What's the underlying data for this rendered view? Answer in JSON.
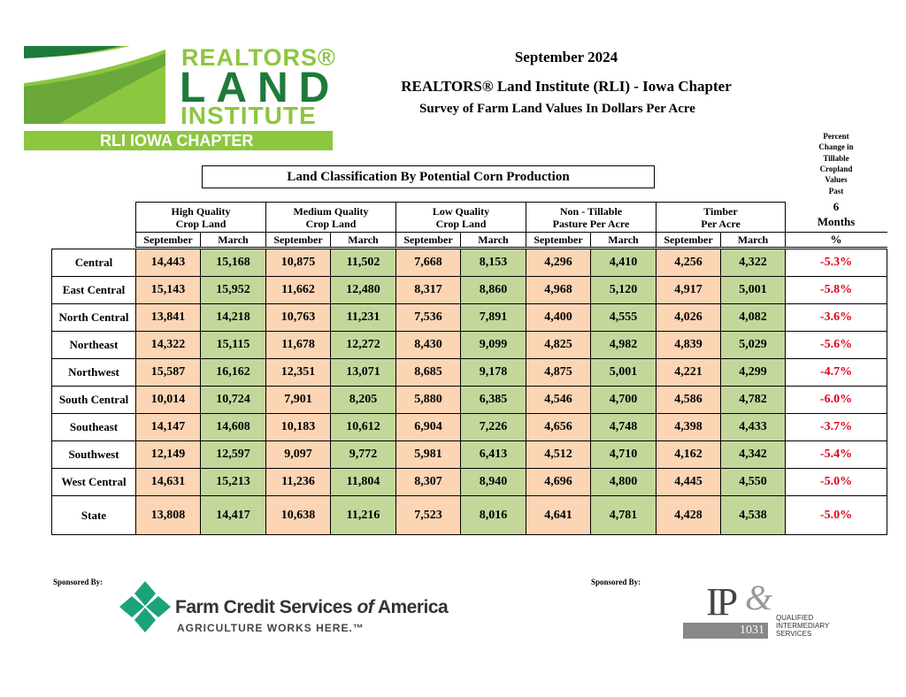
{
  "logo": {
    "line1": "REALTORS®",
    "line2": "LAND",
    "line3": "INSTITUTE",
    "chapter": "RLI IOWA CHAPTER"
  },
  "header": {
    "date": "September 2024",
    "title": "REALTORS® Land Institute (RLI) - Iowa Chapter",
    "subtitle": "Survey of Farm Land Values In Dollars Per Acre"
  },
  "table": {
    "caption": "Land Classification By Potential Corn Production",
    "change_header": {
      "lines": [
        "Percent",
        "Change in",
        "Tillable",
        "Cropland",
        "Values",
        "Past"
      ],
      "period": "6",
      "unit": "Months",
      "symbol": "%"
    },
    "groups": [
      {
        "line1": "High Quality",
        "line2": "Crop Land",
        "columns": [
          "September",
          "March"
        ]
      },
      {
        "line1": "Medium Quality",
        "line2": "Crop Land",
        "columns": [
          "September",
          "March"
        ]
      },
      {
        "line1": "Low Quality",
        "line2": "Crop Land",
        "columns": [
          "September",
          "March"
        ]
      },
      {
        "line1": "Non - Tillable",
        "line2": "Pasture Per Acre",
        "columns": [
          "September",
          "March"
        ]
      },
      {
        "line1": "Timber",
        "line2": "Per Acre",
        "columns": [
          "September",
          "March"
        ]
      }
    ],
    "rows": [
      {
        "region": "Central",
        "values": [
          "14,443",
          "15,168",
          "10,875",
          "11,502",
          "7,668",
          "8,153",
          "4,296",
          "4,410",
          "4,256",
          "4,322"
        ],
        "change": "-5.3%"
      },
      {
        "region": "East Central",
        "values": [
          "15,143",
          "15,952",
          "11,662",
          "12,480",
          "8,317",
          "8,860",
          "4,968",
          "5,120",
          "4,917",
          "5,001"
        ],
        "change": "-5.8%"
      },
      {
        "region": "North Central",
        "values": [
          "13,841",
          "14,218",
          "10,763",
          "11,231",
          "7,536",
          "7,891",
          "4,400",
          "4,555",
          "4,026",
          "4,082"
        ],
        "change": "-3.6%"
      },
      {
        "region": "Northeast",
        "values": [
          "14,322",
          "15,115",
          "11,678",
          "12,272",
          "8,430",
          "9,099",
          "4,825",
          "4,982",
          "4,839",
          "5,029"
        ],
        "change": "-5.6%"
      },
      {
        "region": "Northwest",
        "values": [
          "15,587",
          "16,162",
          "12,351",
          "13,071",
          "8,685",
          "9,178",
          "4,875",
          "5,001",
          "4,221",
          "4,299"
        ],
        "change": "-4.7%"
      },
      {
        "region": "South Central",
        "values": [
          "10,014",
          "10,724",
          "7,901",
          "8,205",
          "5,880",
          "6,385",
          "4,546",
          "4,700",
          "4,586",
          "4,782"
        ],
        "change": "-6.0%"
      },
      {
        "region": "Southeast",
        "values": [
          "14,147",
          "14,608",
          "10,183",
          "10,612",
          "6,904",
          "7,226",
          "4,656",
          "4,748",
          "4,398",
          "4,433"
        ],
        "change": "-3.7%"
      },
      {
        "region": "Southwest",
        "values": [
          "12,149",
          "12,597",
          "9,097",
          "9,772",
          "5,981",
          "6,413",
          "4,512",
          "4,710",
          "4,162",
          "4,342"
        ],
        "change": "-5.4%"
      },
      {
        "region": "West Central",
        "values": [
          "14,631",
          "15,213",
          "11,236",
          "11,804",
          "8,307",
          "8,940",
          "4,696",
          "4,800",
          "4,445",
          "4,550"
        ],
        "change": "-5.0%"
      },
      {
        "region": "State",
        "values": [
          "13,808",
          "14,417",
          "10,638",
          "11,216",
          "7,523",
          "8,016",
          "4,641",
          "4,781",
          "4,428",
          "4,538"
        ],
        "change": "-5.0%"
      }
    ]
  },
  "sponsors": [
    {
      "label": "Sponsored By:",
      "name": "Farm Credit Services",
      "name_of": "of",
      "name_end": "America",
      "tagline": "AGRICULTURE WORKS HERE.™"
    },
    {
      "label": "Sponsored By:",
      "mark": "IP",
      "amp": "&",
      "code": "1031",
      "text": [
        "QUALIFIED",
        "INTERMEDIARY",
        "SERVICES"
      ]
    }
  ]
}
